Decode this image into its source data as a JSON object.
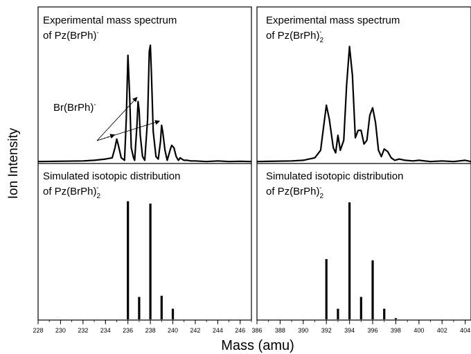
{
  "figure": {
    "ylabel": "Ion Intensity",
    "xlabel": "Mass (amu)"
  },
  "chart_data": [
    {
      "type": "line",
      "panel": "top-left",
      "title_line1": "Experimental mass spectrum",
      "title_line2": {
        "prefix": "of Pz(BrPh)",
        "sub": "",
        "sup": "-"
      },
      "annotation": {
        "text": "Br(BrPh)",
        "sup": "-",
        "targets_x": [
          235,
          237,
          239
        ]
      },
      "xlim": [
        228,
        247
      ],
      "ylim": [
        0,
        1.08
      ],
      "x": [
        228,
        232,
        233,
        234,
        234.6,
        234.85,
        235.0,
        235.15,
        235.4,
        235.7,
        235.85,
        236.0,
        236.15,
        236.3,
        236.5,
        236.6,
        236.8,
        236.9,
        237.0,
        237.1,
        237.3,
        237.5,
        237.75,
        237.9,
        238.0,
        238.1,
        238.25,
        238.5,
        238.7,
        238.9,
        239.0,
        239.1,
        239.3,
        239.5,
        239.75,
        239.9,
        240.1,
        240.3,
        240.5,
        240.65,
        240.8,
        241.0,
        241.3,
        241.6,
        242.0,
        243.0,
        244.0,
        245.0,
        246.0,
        247.0
      ],
      "y": [
        0.01,
        0.015,
        0.02,
        0.03,
        0.04,
        0.12,
        0.19,
        0.14,
        0.04,
        0.02,
        0.35,
        0.86,
        0.55,
        0.12,
        0.04,
        0.02,
        0.3,
        0.49,
        0.42,
        0.22,
        0.05,
        0.02,
        0.35,
        0.89,
        0.94,
        0.7,
        0.25,
        0.05,
        0.03,
        0.17,
        0.3,
        0.25,
        0.1,
        0.02,
        0.1,
        0.14,
        0.12,
        0.05,
        0.02,
        0.04,
        0.03,
        0.02,
        0.02,
        0.015,
        0.015,
        0.01,
        0.015,
        0.01,
        0.012,
        0.01
      ]
    },
    {
      "type": "line",
      "panel": "top-right",
      "title_line1": "Experimental mass spectrum",
      "title_line2": {
        "prefix": "of Pz(BrPh)",
        "sub": "2",
        "sup": "-"
      },
      "xlim": [
        386,
        404.5
      ],
      "ylim": [
        0,
        1.08
      ],
      "x": [
        386,
        389,
        390,
        390.5,
        391.0,
        391.5,
        391.75,
        392.0,
        392.25,
        392.6,
        392.8,
        393.0,
        393.2,
        393.5,
        393.75,
        394.0,
        394.25,
        394.5,
        394.75,
        395.0,
        395.25,
        395.5,
        395.75,
        396.0,
        396.25,
        396.5,
        396.75,
        397.0,
        397.3,
        397.6,
        397.9,
        398.3,
        398.8,
        399.5,
        400,
        401,
        402,
        403,
        404,
        404.5
      ],
      "y": [
        0.01,
        0.015,
        0.02,
        0.03,
        0.04,
        0.1,
        0.28,
        0.46,
        0.35,
        0.12,
        0.08,
        0.22,
        0.1,
        0.18,
        0.62,
        0.93,
        0.7,
        0.2,
        0.26,
        0.26,
        0.15,
        0.18,
        0.38,
        0.44,
        0.32,
        0.1,
        0.05,
        0.11,
        0.09,
        0.04,
        0.02,
        0.03,
        0.02,
        0.015,
        0.02,
        0.01,
        0.015,
        0.01,
        0.02,
        0.01
      ]
    },
    {
      "type": "bar",
      "panel": "bottom-left",
      "title_line1": "Simulated isotopic distribution",
      "title_line2": {
        "prefix": "of Pz(BrPh)",
        "sub": "2",
        "sup": "-"
      },
      "xlim": [
        228,
        247
      ],
      "ylim": [
        0,
        1.12
      ],
      "x": [
        236,
        237,
        238,
        239,
        240
      ],
      "values": [
        1.0,
        0.19,
        0.98,
        0.2,
        0.09
      ]
    },
    {
      "type": "bar",
      "panel": "bottom-right",
      "title_line1": "Simulated isotopic distribution",
      "title_line2": {
        "prefix": "of Pz(BrPh)",
        "sub": "2",
        "sup": "-"
      },
      "xlim": [
        386,
        404.5
      ],
      "ylim": [
        0,
        1.12
      ],
      "x": [
        392,
        393,
        394,
        395,
        396,
        397,
        398
      ],
      "values": [
        0.51,
        0.09,
        0.99,
        0.19,
        0.5,
        0.09,
        0.01
      ]
    }
  ],
  "axes": {
    "left_ticks": [
      "228",
      "230",
      "232",
      "234",
      "236",
      "238",
      "240",
      "242",
      "244",
      "246"
    ],
    "left_tick_values": [
      228,
      230,
      232,
      234,
      236,
      238,
      240,
      242,
      244,
      246
    ],
    "right_ticks": [
      "386",
      "388",
      "390",
      "392",
      "394",
      "396",
      "398",
      "400",
      "402",
      "404"
    ],
    "right_tick_values": [
      386,
      388,
      390,
      392,
      394,
      396,
      398,
      400,
      402,
      404
    ]
  }
}
